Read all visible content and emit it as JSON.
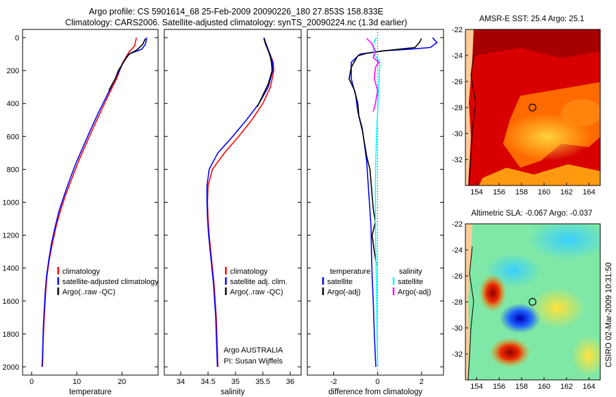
{
  "header": {
    "line1": "Argo profile: CS 5901614_68 25-Feb-2009 20090226_180 27.853S 158.833E",
    "line2": "Climatology: CARS2006. Satellite-adjusted climatology: synTS_20090224.nc (1.3d earlier)"
  },
  "footer": {
    "credit1": "Argo AUSTRALIA",
    "credit2": "PI: Susan Wijffels",
    "side_stamp": "CSIRO 02-Mar-2009 10:31:50"
  },
  "colors": {
    "climatology": "#ff0000",
    "satellite": "#0000ff",
    "argo": "#000000",
    "salinity_satellite": "#00ffff",
    "salinity_argo": "#ff00ff"
  },
  "chart_data": [
    {
      "type": "line",
      "id": "temperature",
      "xlabel": "temperature",
      "xlim": [
        -2,
        28
      ],
      "ylim": [
        0,
        2050
      ],
      "y_reversed": true,
      "xticks": [
        0,
        10,
        20
      ],
      "yticks": [
        0,
        200,
        400,
        600,
        800,
        1000,
        1200,
        1400,
        1600,
        1800,
        2000
      ],
      "legend": [
        "climatology",
        "satellite-adjusted climatology",
        "Argo(..raw -QC)"
      ],
      "series": [
        {
          "name": "climatology",
          "color": "#ff0000",
          "points": [
            [
              23.2,
              0
            ],
            [
              22.8,
              50
            ],
            [
              21.5,
              90
            ],
            [
              20.2,
              150
            ],
            [
              18.8,
              250
            ],
            [
              17,
              350
            ],
            [
              15.3,
              450
            ],
            [
              13.6,
              550
            ],
            [
              12,
              650
            ],
            [
              10.4,
              750
            ],
            [
              9,
              850
            ],
            [
              7.6,
              950
            ],
            [
              6.4,
              1050
            ],
            [
              5.4,
              1150
            ],
            [
              4.6,
              1250
            ],
            [
              3.9,
              1350
            ],
            [
              3.4,
              1450
            ],
            [
              3.1,
              1550
            ],
            [
              2.9,
              1650
            ],
            [
              2.7,
              1750
            ],
            [
              2.55,
              1850
            ],
            [
              2.45,
              1950
            ],
            [
              2.4,
              2000
            ]
          ]
        },
        {
          "name": "satellite",
          "color": "#0000ff",
          "points": [
            [
              25.5,
              0
            ],
            [
              25.2,
              40
            ],
            [
              24.4,
              70
            ],
            [
              21.5,
              100
            ],
            [
              20.3,
              150
            ],
            [
              18.5,
              250
            ],
            [
              16.7,
              350
            ],
            [
              14.9,
              450
            ],
            [
              13.2,
              550
            ],
            [
              11.6,
              650
            ],
            [
              10,
              750
            ],
            [
              8.6,
              850
            ],
            [
              7.3,
              950
            ],
            [
              6.1,
              1050
            ],
            [
              5.2,
              1150
            ],
            [
              4.4,
              1250
            ],
            [
              3.8,
              1350
            ],
            [
              3.3,
              1450
            ],
            [
              3,
              1550
            ],
            [
              2.8,
              1650
            ],
            [
              2.6,
              1750
            ],
            [
              2.5,
              1850
            ],
            [
              2.4,
              1950
            ],
            [
              2.3,
              2000
            ]
          ]
        },
        {
          "name": "argo",
          "color": "#000000",
          "points": [
            [
              25.2,
              5
            ],
            [
              24.6,
              40
            ],
            [
              23.3,
              75
            ],
            [
              21.6,
              100
            ],
            [
              20.8,
              130
            ],
            [
              19.2,
              200
            ],
            [
              18.5,
              250
            ],
            [
              17.1,
              320
            ]
          ]
        }
      ]
    },
    {
      "type": "line",
      "id": "salinity",
      "xlabel": "salinity",
      "xlim": [
        33.7,
        36.2
      ],
      "ylim": [
        0,
        2050
      ],
      "y_reversed": true,
      "xticks": [
        34,
        34.5,
        35,
        35.5,
        36
      ],
      "legend": [
        "climatology",
        "satellite adj. clim.",
        "Argo(..raw -QC)"
      ],
      "series": [
        {
          "name": "climatology",
          "color": "#ff0000",
          "points": [
            [
              35.52,
              0
            ],
            [
              35.56,
              40
            ],
            [
              35.63,
              100
            ],
            [
              35.69,
              150
            ],
            [
              35.7,
              200
            ],
            [
              35.64,
              300
            ],
            [
              35.5,
              400
            ],
            [
              35.3,
              500
            ],
            [
              35.06,
              600
            ],
            [
              34.8,
              700
            ],
            [
              34.58,
              800
            ],
            [
              34.5,
              900
            ],
            [
              34.49,
              1000
            ],
            [
              34.5,
              1100
            ],
            [
              34.52,
              1200
            ],
            [
              34.55,
              1300
            ],
            [
              34.58,
              1400
            ],
            [
              34.61,
              1500
            ],
            [
              34.63,
              1600
            ],
            [
              34.65,
              1700
            ],
            [
              34.66,
              1800
            ],
            [
              34.67,
              1900
            ],
            [
              34.68,
              2000
            ]
          ]
        },
        {
          "name": "satellite",
          "color": "#0000ff",
          "points": [
            [
              35.52,
              0
            ],
            [
              35.56,
              40
            ],
            [
              35.63,
              100
            ],
            [
              35.68,
              150
            ],
            [
              35.68,
              200
            ],
            [
              35.6,
              300
            ],
            [
              35.43,
              400
            ],
            [
              35.2,
              500
            ],
            [
              34.95,
              600
            ],
            [
              34.68,
              700
            ],
            [
              34.52,
              800
            ],
            [
              34.48,
              900
            ],
            [
              34.48,
              1000
            ],
            [
              34.49,
              1100
            ],
            [
              34.51,
              1200
            ],
            [
              34.54,
              1300
            ],
            [
              34.57,
              1400
            ],
            [
              34.6,
              1500
            ],
            [
              34.62,
              1600
            ],
            [
              34.64,
              1700
            ],
            [
              34.65,
              1800
            ],
            [
              34.66,
              1900
            ],
            [
              34.67,
              2000
            ]
          ]
        },
        {
          "name": "argo",
          "color": "#000000",
          "points": [
            [
              35.52,
              5
            ],
            [
              35.55,
              40
            ],
            [
              35.6,
              80
            ],
            [
              35.64,
              120
            ],
            [
              35.66,
              160
            ],
            [
              35.67,
              200
            ],
            [
              35.6,
              280
            ],
            [
              35.5,
              350
            ],
            [
              35.4,
              420
            ]
          ]
        }
      ]
    },
    {
      "type": "line",
      "id": "difference",
      "xlabel": "difference from climatology",
      "xlim": [
        -3.2,
        3.0
      ],
      "ylim": [
        0,
        2050
      ],
      "y_reversed": true,
      "xticks": [
        -2,
        0,
        2
      ],
      "legend": [
        "temperature",
        "satellite",
        "Argo(-adj)",
        "salinity",
        "satellite",
        "Argo(-adj)"
      ],
      "series": [
        {
          "name": "temperature satellite",
          "color": "#0000ff",
          "points": [
            [
              2.5,
              0
            ],
            [
              2.7,
              30
            ],
            [
              2.4,
              60
            ],
            [
              1.5,
              70
            ],
            [
              0.3,
              80
            ],
            [
              -0.8,
              100
            ],
            [
              -1.2,
              150
            ],
            [
              -1.2,
              250
            ],
            [
              -1,
              350
            ],
            [
              -0.9,
              450
            ],
            [
              -0.7,
              550
            ],
            [
              -0.6,
              650
            ],
            [
              -0.5,
              750
            ],
            [
              -0.45,
              850
            ],
            [
              -0.4,
              950
            ],
            [
              -0.35,
              1050
            ],
            [
              -0.3,
              1150
            ],
            [
              -0.28,
              1300
            ],
            [
              -0.25,
              1450
            ],
            [
              -0.2,
              1600
            ],
            [
              -0.15,
              1800
            ],
            [
              -0.1,
              1950
            ],
            [
              -0.08,
              2000
            ]
          ]
        },
        {
          "name": "temperature argo",
          "color": "#000000",
          "points": [
            [
              2,
              5
            ],
            [
              1.9,
              30
            ],
            [
              1.7,
              60
            ],
            [
              0.3,
              80
            ],
            [
              -0.5,
              95
            ],
            [
              -0.9,
              110
            ],
            [
              -1.2,
              180
            ],
            [
              -1.3,
              250
            ],
            [
              -1.05,
              320
            ],
            [
              -0.9,
              400
            ],
            [
              -0.85,
              480
            ],
            [
              -0.7,
              560
            ],
            [
              -0.6,
              640
            ],
            [
              -0.5,
              720
            ],
            [
              -0.35,
              800
            ],
            [
              -0.3,
              880
            ],
            [
              -0.25,
              960
            ],
            [
              -0.2,
              1040
            ],
            [
              -0.1,
              1120
            ],
            [
              -0.25,
              1200
            ],
            [
              -0.15,
              1300
            ],
            [
              -0.05,
              1380
            ]
          ]
        },
        {
          "name": "salinity satellite",
          "color": "#00ffff",
          "points": [
            [
              -0.05,
              0
            ],
            [
              -0.15,
              20
            ],
            [
              -0.2,
              60
            ],
            [
              -0.15,
              100
            ],
            [
              0.1,
              150
            ],
            [
              0.08,
              200
            ],
            [
              0.05,
              300
            ],
            [
              0.0,
              450
            ],
            [
              -0.05,
              600
            ],
            [
              -0.08,
              750
            ],
            [
              -0.1,
              900
            ],
            [
              -0.1,
              1100
            ],
            [
              -0.08,
              1300
            ],
            [
              -0.05,
              1500
            ],
            [
              -0.03,
              1700
            ],
            [
              -0.01,
              1900
            ],
            [
              0.0,
              2000
            ]
          ]
        },
        {
          "name": "salinity argo",
          "color": "#ff00ff",
          "points": [
            [
              -0.5,
              5
            ],
            [
              -0.3,
              30
            ],
            [
              -0.1,
              80
            ],
            [
              -0.2,
              120
            ],
            [
              0.05,
              150
            ],
            [
              -0.1,
              180
            ],
            [
              -0.15,
              250
            ],
            [
              0.0,
              320
            ],
            [
              -0.1,
              400
            ],
            [
              -0.2,
              450
            ]
          ]
        }
      ]
    },
    {
      "type": "heatmap",
      "id": "sst-map",
      "title": "AMSR-E SST: 25.4 Argo: 25.1",
      "xticks": [
        154,
        156,
        158,
        160,
        162,
        164
      ],
      "yticks": [
        -22,
        -24,
        -26,
        -28,
        -30,
        -32
      ],
      "xlim": [
        153,
        165
      ],
      "ylim": [
        -34,
        -22
      ],
      "argo_location": [
        158.833,
        -27.853
      ]
    },
    {
      "type": "heatmap",
      "id": "sla-map",
      "title": "Altimetric SLA: -0.067 Argo: -0.037",
      "xticks": [
        154,
        156,
        158,
        160,
        162,
        164
      ],
      "yticks": [
        -22,
        -24,
        -26,
        -28,
        -30,
        -32
      ],
      "xlim": [
        153,
        165
      ],
      "ylim": [
        -34,
        -22
      ],
      "argo_location": [
        158.833,
        -27.853
      ]
    }
  ]
}
